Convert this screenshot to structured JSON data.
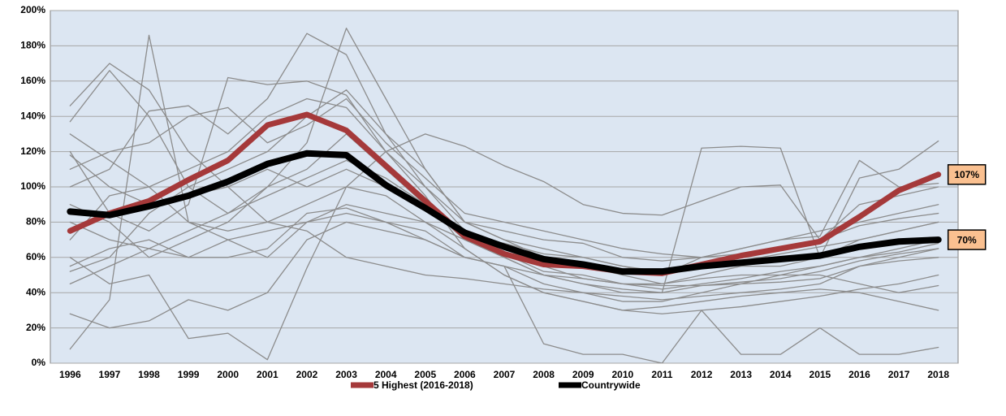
{
  "chart_data": {
    "type": "line",
    "categories": [
      "1996",
      "1997",
      "1998",
      "1999",
      "2000",
      "2001",
      "2002",
      "2003",
      "2004",
      "2005",
      "2006",
      "2007",
      "2008",
      "2009",
      "2010",
      "2011",
      "2012",
      "2013",
      "2014",
      "2015",
      "2016",
      "2017",
      "2018"
    ],
    "ylim": [
      0,
      200
    ],
    "yticks": [
      {
        "value": 0,
        "label": "0%"
      },
      {
        "value": 20,
        "label": "20%"
      },
      {
        "value": 40,
        "label": "40%"
      },
      {
        "value": 60,
        "label": "60%"
      },
      {
        "value": 80,
        "label": "80%"
      },
      {
        "value": 100,
        "label": "100%"
      },
      {
        "value": 120,
        "label": "120%"
      },
      {
        "value": 140,
        "label": "140%"
      },
      {
        "value": 160,
        "label": "160%"
      },
      {
        "value": 180,
        "label": "180%"
      },
      {
        "value": 200,
        "label": "200%"
      }
    ],
    "grid": true,
    "legend": "bottom",
    "background_series": [
      {
        "color": "#8c8c8c",
        "values": [
          146,
          170,
          155,
          120,
          100,
          80,
          75,
          60,
          55,
          50,
          48,
          45,
          42,
          40,
          38,
          36,
          38,
          40,
          42,
          45,
          55,
          60,
          65
        ]
      },
      {
        "color": "#8c8c8c",
        "values": [
          137,
          166,
          140,
          100,
          85,
          100,
          125,
          190,
          150,
          110,
          80,
          75,
          70,
          68,
          60,
          58,
          60,
          65,
          70,
          75,
          80,
          85,
          90
        ]
      },
      {
        "color": "#8c8c8c",
        "values": [
          8,
          36,
          186,
          80,
          70,
          60,
          80,
          90,
          85,
          80,
          70,
          60,
          50,
          45,
          40,
          40,
          122,
          123,
          122,
          60,
          105,
          110,
          126
        ]
      },
      {
        "color": "#8c8c8c",
        "values": [
          28,
          20,
          24,
          36,
          30,
          40,
          70,
          80,
          75,
          70,
          60,
          55,
          45,
          40,
          35,
          35,
          40,
          45,
          50,
          55,
          60,
          65,
          70
        ]
      },
      {
        "color": "#8c8c8c",
        "values": [
          55,
          65,
          70,
          60,
          60,
          65,
          85,
          88,
          80,
          70,
          60,
          55,
          11,
          5,
          5,
          0,
          30,
          5,
          5,
          20,
          5,
          5,
          9
        ]
      },
      {
        "color": "#8c8c8c",
        "values": [
          120,
          85,
          75,
          90,
          162,
          158,
          160,
          152,
          120,
          100,
          80,
          70,
          65,
          60,
          55,
          50,
          60,
          65,
          70,
          72,
          115,
          100,
          102
        ]
      },
      {
        "color": "#8c8c8c",
        "values": [
          60,
          45,
          50,
          14,
          17,
          2,
          54,
          100,
          120,
          130,
          123,
          112,
          103,
          90,
          85,
          84,
          92,
          100,
          101,
          70,
          90,
          95,
          100
        ]
      },
      {
        "color": "#8c8c8c",
        "values": [
          100,
          110,
          143,
          146,
          130,
          150,
          187,
          175,
          130,
          110,
          80,
          70,
          60,
          55,
          50,
          45,
          50,
          55,
          55,
          60,
          70,
          75,
          80
        ]
      },
      {
        "color": "#8c8c8c",
        "values": [
          90,
          80,
          60,
          70,
          80,
          100,
          110,
          130,
          110,
          90,
          70,
          60,
          50,
          45,
          42,
          40,
          44,
          45,
          46,
          48,
          55,
          58,
          60
        ]
      },
      {
        "color": "#8c8c8c",
        "values": [
          70,
          95,
          100,
          110,
          120,
          140,
          150,
          145,
          120,
          95,
          65,
          50,
          40,
          35,
          30,
          28,
          30,
          32,
          35,
          38,
          42,
          45,
          50
        ]
      },
      {
        "color": "#8c8c8c",
        "values": [
          110,
          120,
          125,
          140,
          145,
          125,
          135,
          150,
          125,
          105,
          85,
          80,
          75,
          70,
          65,
          62,
          60,
          62,
          65,
          70,
          78,
          82,
          85
        ]
      },
      {
        "color": "#8c8c8c",
        "values": [
          45,
          55,
          65,
          75,
          85,
          95,
          105,
          115,
          105,
          90,
          75,
          65,
          55,
          48,
          45,
          44,
          44,
          46,
          48,
          52,
          58,
          62,
          65
        ]
      },
      {
        "color": "#8c8c8c",
        "values": [
          130,
          115,
          100,
          80,
          75,
          80,
          90,
          100,
          95,
          80,
          65,
          50,
          40,
          35,
          30,
          32,
          35,
          38,
          40,
          42,
          40,
          35,
          30
        ]
      },
      {
        "color": "#8c8c8c",
        "values": [
          80,
          70,
          65,
          60,
          70,
          75,
          80,
          85,
          80,
          75,
          60,
          55,
          50,
          48,
          45,
          45,
          48,
          50,
          50,
          50,
          45,
          40,
          44
        ]
      },
      {
        "color": "#8c8c8c",
        "values": [
          118,
          100,
          90,
          95,
          100,
          110,
          100,
          110,
          100,
          90,
          72,
          68,
          62,
          60,
          55,
          52,
          55,
          58,
          62,
          66,
          70,
          75,
          80
        ]
      },
      {
        "color": "#8c8c8c",
        "values": [
          52,
          60,
          85,
          100,
          110,
          120,
          140,
          155,
          130,
          100,
          75,
          62,
          52,
          50,
          45,
          42,
          45,
          48,
          52,
          55,
          60,
          63,
          68
        ]
      }
    ],
    "series": [
      {
        "name": "5 Highest (2016-2018)",
        "color": "#a5393a",
        "values": [
          75,
          85,
          92,
          104,
          115,
          135,
          141,
          132,
          112,
          92,
          72,
          62,
          56,
          55,
          52,
          51,
          56,
          61,
          65,
          69,
          83,
          98,
          107
        ],
        "value_labels": [
          null,
          null,
          null,
          null,
          null,
          null,
          null,
          null,
          null,
          null,
          null,
          null,
          null,
          null,
          null,
          null,
          null,
          null,
          null,
          null,
          null,
          null,
          "107%"
        ]
      },
      {
        "name": "Countrywide",
        "color": "#000000",
        "values": [
          86,
          84,
          89,
          95,
          103,
          113,
          119,
          118,
          101,
          88,
          74,
          66,
          59,
          56,
          52,
          52,
          55,
          57,
          59,
          61,
          66,
          69,
          70
        ],
        "value_labels": [
          null,
          null,
          null,
          null,
          null,
          null,
          null,
          null,
          null,
          null,
          null,
          null,
          null,
          null,
          null,
          null,
          null,
          null,
          null,
          null,
          null,
          null,
          "70%"
        ]
      }
    ]
  }
}
